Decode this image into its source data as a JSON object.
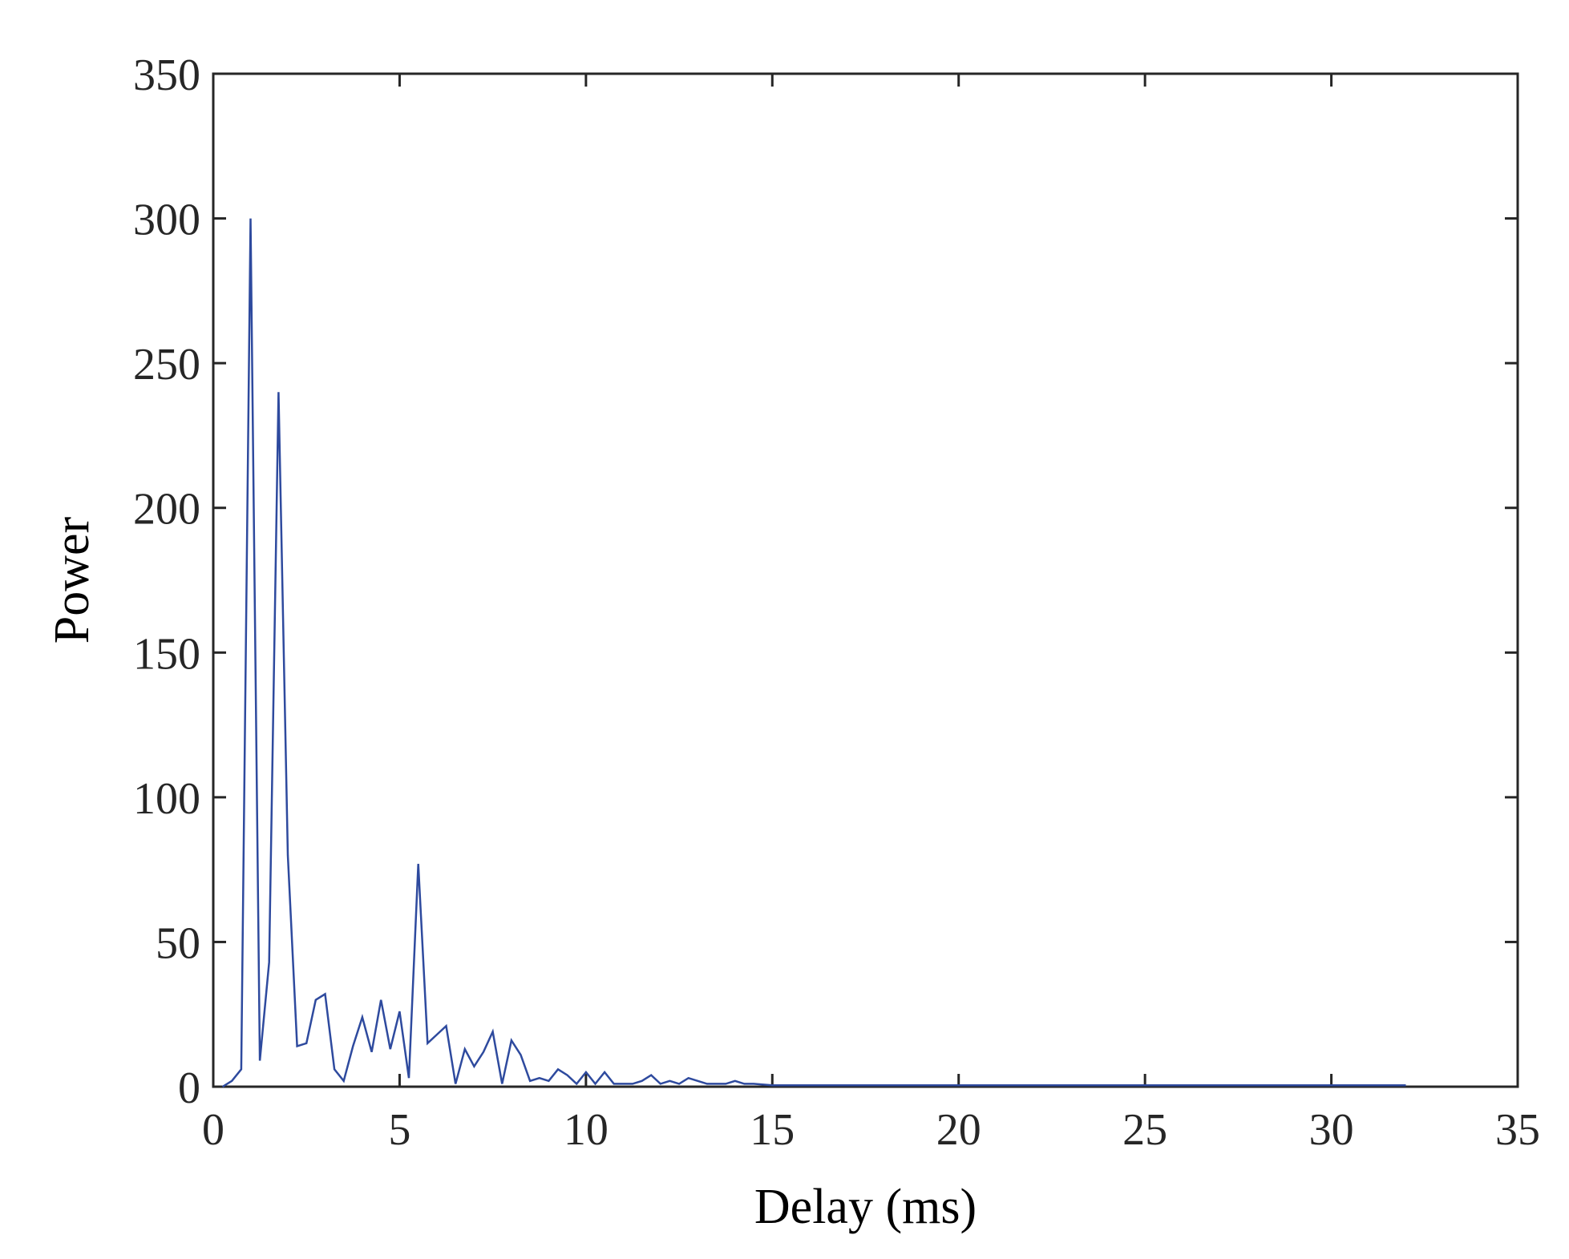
{
  "chart_data": {
    "type": "line",
    "title": "",
    "xlabel": "Delay (ms)",
    "ylabel": "Power",
    "xlim": [
      0,
      35
    ],
    "ylim": [
      0,
      350
    ],
    "xticks": [
      0,
      5,
      10,
      15,
      20,
      25,
      30,
      35
    ],
    "yticks": [
      0,
      50,
      100,
      150,
      200,
      250,
      300,
      350
    ],
    "xtick_labels": [
      "0",
      "5",
      "10",
      "15",
      "20",
      "25",
      "30",
      "35"
    ],
    "ytick_labels": [
      "0",
      "50",
      "100",
      "150",
      "200",
      "250",
      "300",
      "350"
    ],
    "grid": false,
    "box": true,
    "series": [
      {
        "color": "#2e4a9e",
        "x": [
          0.25,
          0.5,
          0.75,
          1.0,
          1.25,
          1.5,
          1.75,
          2.0,
          2.25,
          2.5,
          2.75,
          3.0,
          3.25,
          3.5,
          3.75,
          4.0,
          4.25,
          4.5,
          4.75,
          5.0,
          5.25,
          5.5,
          5.75,
          6.0,
          6.25,
          6.5,
          6.75,
          7.0,
          7.25,
          7.5,
          7.75,
          8.0,
          8.25,
          8.5,
          8.75,
          9.0,
          9.25,
          9.5,
          9.75,
          10.0,
          10.25,
          10.5,
          10.75,
          11.0,
          11.25,
          11.5,
          11.75,
          12.0,
          12.25,
          12.5,
          12.75,
          13.0,
          13.25,
          13.5,
          13.75,
          14.0,
          14.25,
          14.5,
          15.0,
          15.5,
          16.0,
          17.0,
          18.0,
          19.0,
          20.0,
          22.0,
          24.0,
          26.0,
          28.0,
          30.0,
          31.0,
          32.0
        ],
        "y": [
          0,
          2,
          6,
          300,
          9,
          43,
          240,
          80,
          14,
          15,
          30,
          32,
          6,
          2,
          14,
          24,
          12,
          30,
          13,
          26,
          3,
          77,
          15,
          18,
          21,
          1,
          13,
          7,
          12,
          19,
          1,
          16,
          11,
          2,
          3,
          2,
          6,
          4,
          1,
          5,
          1,
          5,
          1,
          1,
          1,
          2,
          4,
          1,
          2,
          1,
          3,
          2,
          1,
          1,
          1,
          2,
          1,
          1,
          0.5,
          0.5,
          0.5,
          0.5,
          0.5,
          0.5,
          0.5,
          0.5,
          0.5,
          0.5,
          0.5,
          0.5,
          0.5,
          0.5
        ]
      }
    ]
  }
}
